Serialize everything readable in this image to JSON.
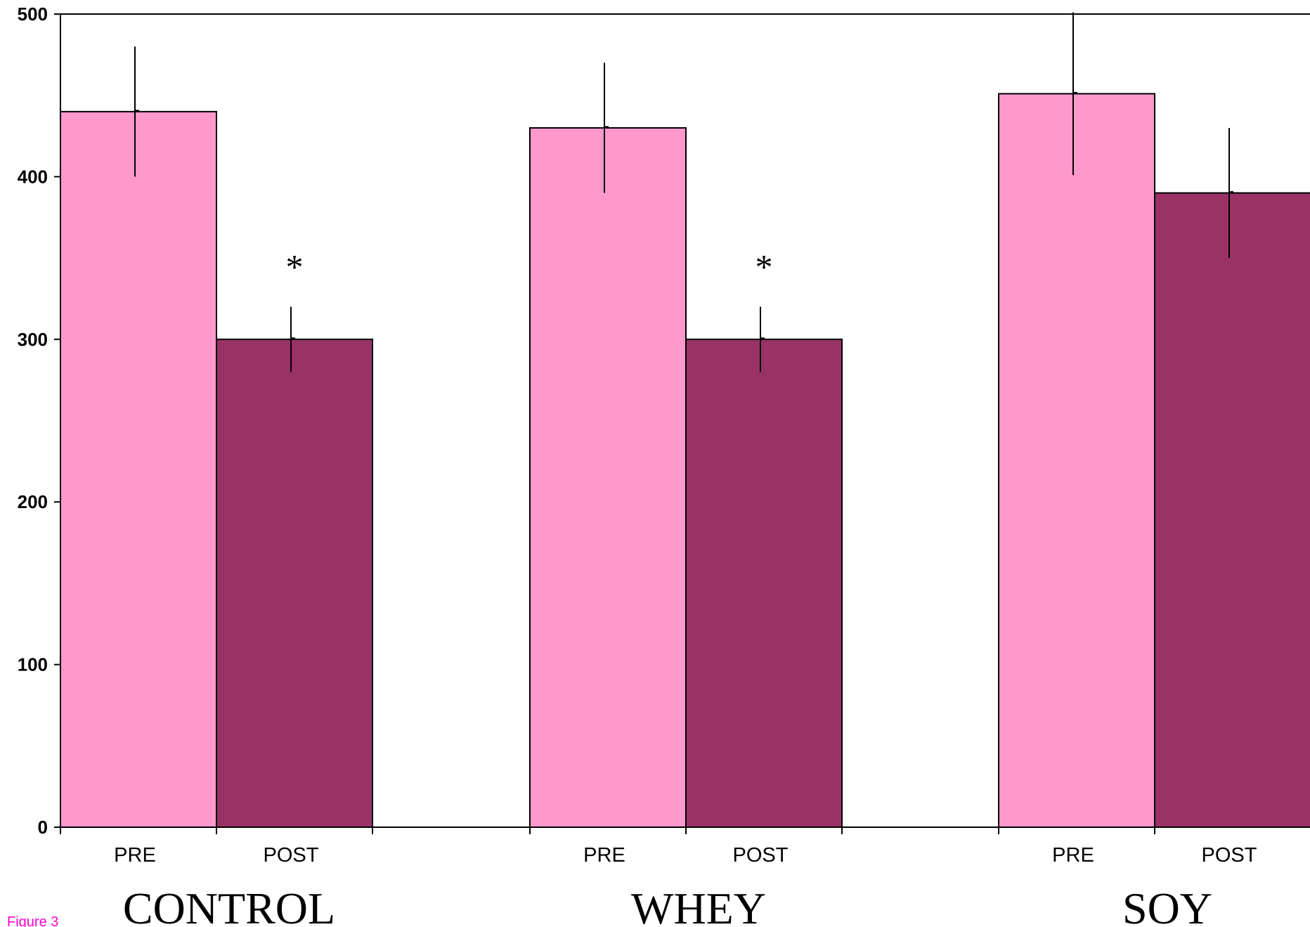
{
  "figure_label": "Figure 3",
  "colors": {
    "pre": "#ff99cc",
    "post": "#993366",
    "significance": "#000000",
    "figure_label": "#ff00cc"
  },
  "chart_data": {
    "type": "bar",
    "title": "",
    "xlabel": "",
    "ylabel": "",
    "ylim": [
      0,
      500
    ],
    "yticks": [
      0,
      100,
      200,
      300,
      400,
      500
    ],
    "grid": false,
    "legend": "none",
    "groups": [
      {
        "name": "CONTROL",
        "bars": [
          {
            "label": "PRE",
            "value": 440,
            "error": 40,
            "significant": false
          },
          {
            "label": "POST",
            "value": 300,
            "error": 20,
            "significant": true
          }
        ]
      },
      {
        "name": "WHEY",
        "bars": [
          {
            "label": "PRE",
            "value": 430,
            "error": 40,
            "significant": false
          },
          {
            "label": "POST",
            "value": 300,
            "error": 20,
            "significant": true
          }
        ]
      },
      {
        "name": "SOY",
        "bars": [
          {
            "label": "PRE",
            "value": 451,
            "error": 50,
            "significant": false
          },
          {
            "label": "POST",
            "value": 390,
            "error": 40,
            "significant": false
          }
        ]
      }
    ],
    "significance_marker": "*"
  }
}
